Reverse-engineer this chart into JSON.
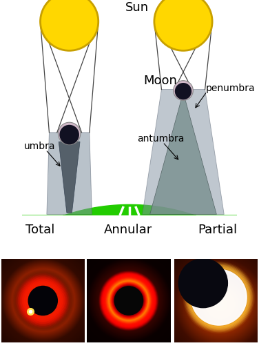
{
  "background_color": "#ffffff",
  "sun_color": "#FFD700",
  "sun_edge_color": "#C8A000",
  "moon_light_color": "#D0B8C8",
  "moon_dark_color": "#111122",
  "umbra_color": "#4a5560",
  "penumbra_color": "#8090a0",
  "antumbra_color": "#7a9090",
  "ground_color": "#22cc00",
  "labels": {
    "sun": "Sun",
    "moon": "Moon",
    "umbra": "umbra",
    "penumbra": "penumbra",
    "antumbra": "antumbra",
    "total": "Total",
    "annular": "Annular",
    "partial": "Partial"
  },
  "font_size_large": 13,
  "font_size_small": 10
}
